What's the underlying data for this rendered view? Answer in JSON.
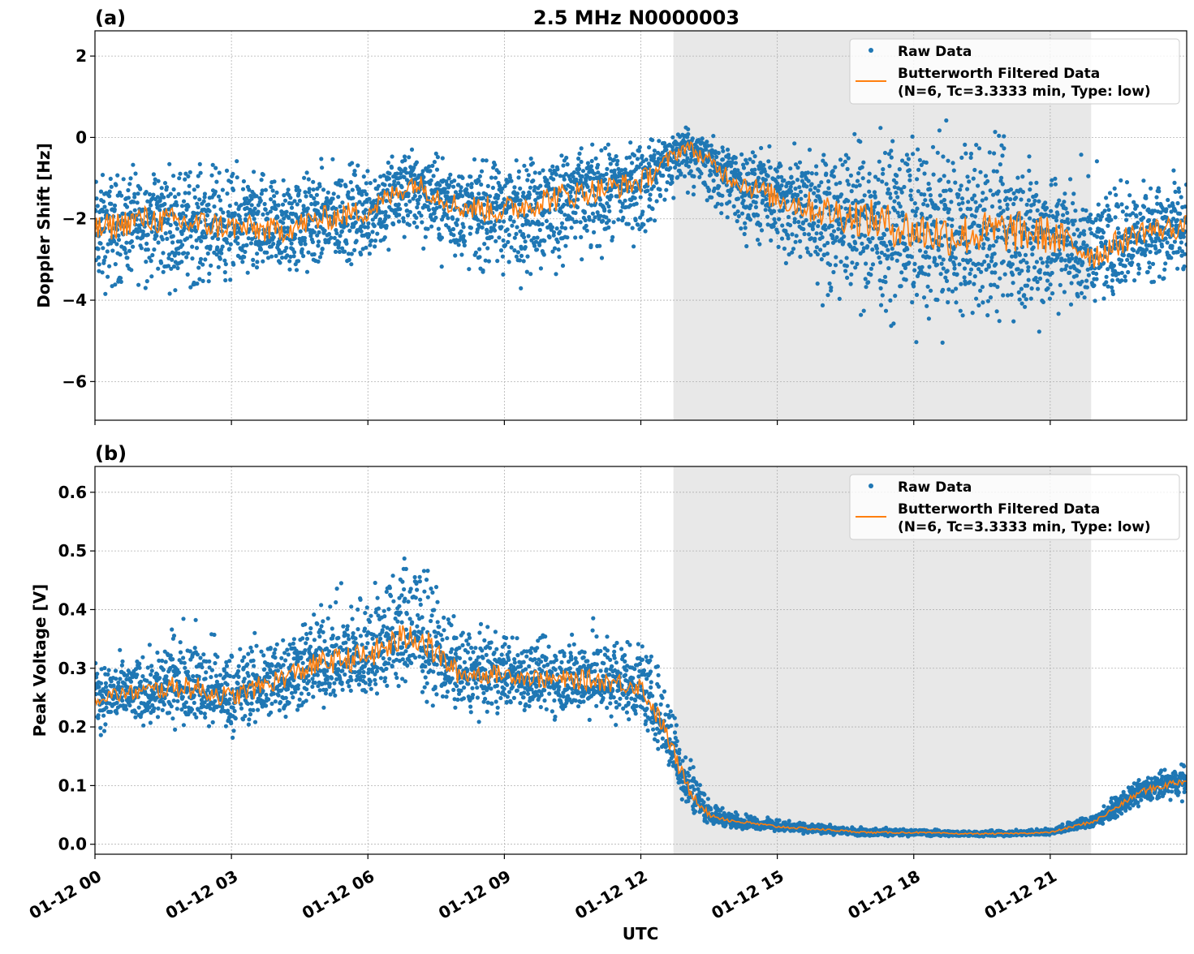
{
  "title": "2.5 MHz N0000003",
  "colors": {
    "raw": "#1f77b4",
    "filtered": "#ff7f0e",
    "shade": "#e8e8e8",
    "grid": "#b0b0b0"
  },
  "chart_data": [
    {
      "type": "scatter",
      "panel_label": "(a)",
      "ylabel": "Doppler Shift [Hz]",
      "xlabel": "",
      "xlim_hours_utc": [
        0,
        24
      ],
      "ylim": [
        -6.95,
        2.62
      ],
      "yticks": [
        2,
        0,
        -2,
        -4,
        -6
      ],
      "ytick_labels": [
        "2",
        "0",
        "−2",
        "−4",
        "−6"
      ],
      "grid": true,
      "legend_placement": "top-right",
      "legend": [
        "Raw Data",
        "Butterworth Filtered Data",
        "(N=6, Tc=3.3333 min, Type: low)"
      ],
      "shaded_span_utc": [
        "12:43",
        "21:54"
      ],
      "series": [
        {
          "name": "Butterworth Filtered Data",
          "kind": "line",
          "x_hours": [
            0,
            1,
            2,
            3,
            4,
            5,
            6,
            7,
            8,
            9,
            10,
            11,
            12,
            13,
            14,
            15,
            16,
            17,
            18,
            19,
            20,
            21,
            22,
            23,
            24
          ],
          "y": [
            -2.3,
            -2.0,
            -2.1,
            -2.2,
            -2.3,
            -2.0,
            -1.8,
            -1.1,
            -1.7,
            -1.8,
            -1.5,
            -1.3,
            -1.1,
            -0.2,
            -1.0,
            -1.5,
            -1.8,
            -2.0,
            -2.3,
            -2.4,
            -2.3,
            -2.4,
            -2.9,
            -2.3,
            -2.2
          ]
        },
        {
          "name": "Raw Data",
          "kind": "scatter-envelope",
          "x_hours": [
            0,
            1,
            2,
            3,
            4,
            5,
            6,
            7,
            8,
            9,
            10,
            11,
            12,
            13,
            14,
            15,
            16,
            17,
            18,
            19,
            20,
            21,
            22,
            23,
            24
          ],
          "y_low": [
            -4.5,
            -4.0,
            -4.2,
            -4.0,
            -4.0,
            -3.8,
            -3.5,
            -3.0,
            -3.7,
            -4.0,
            -4.0,
            -3.5,
            -3.0,
            -1.5,
            -2.8,
            -3.5,
            -4.5,
            -5.0,
            -5.2,
            -5.3,
            -5.5,
            -5.2,
            -4.5,
            -4.0,
            -3.8
          ],
          "y_high": [
            -0.5,
            -0.3,
            -0.2,
            -0.3,
            -0.5,
            -0.3,
            -0.2,
            0.0,
            -0.3,
            -0.2,
            0.0,
            0.0,
            0.2,
            0.5,
            0.0,
            0.0,
            0.2,
            0.5,
            0.8,
            0.8,
            0.6,
            0.0,
            -0.5,
            -0.5,
            -0.5
          ]
        }
      ]
    },
    {
      "type": "scatter",
      "panel_label": "(b)",
      "ylabel": "Peak Voltage [V]",
      "xlabel": "UTC",
      "xlim_hours_utc": [
        0,
        24
      ],
      "ylim": [
        -0.017,
        0.644
      ],
      "yticks": [
        0.0,
        0.1,
        0.2,
        0.3,
        0.4,
        0.5,
        0.6
      ],
      "ytick_labels": [
        "0.0",
        "0.1",
        "0.2",
        "0.3",
        "0.4",
        "0.5",
        "0.6"
      ],
      "xticks_hours": [
        0,
        3,
        6,
        9,
        12,
        15,
        18,
        21
      ],
      "xtick_labels": [
        "01-12 00",
        "01-12 03",
        "01-12 06",
        "01-12 09",
        "01-12 12",
        "01-12 15",
        "01-12 18",
        "01-12 21"
      ],
      "grid": true,
      "legend_placement": "top-right",
      "legend": [
        "Raw Data",
        "Butterworth Filtered Data",
        "(N=6, Tc=3.3333 min, Type: low)"
      ],
      "shaded_span_utc": [
        "12:43",
        "21:54"
      ],
      "series": [
        {
          "name": "Butterworth Filtered Data",
          "kind": "line",
          "x_hours": [
            0,
            1,
            2,
            3,
            4,
            5,
            6,
            7,
            8,
            9,
            10,
            11,
            12,
            12.5,
            13,
            13.5,
            14,
            15,
            16,
            17,
            18,
            19,
            20,
            21,
            22,
            23,
            24
          ],
          "y": [
            0.25,
            0.26,
            0.27,
            0.25,
            0.28,
            0.31,
            0.32,
            0.36,
            0.29,
            0.29,
            0.28,
            0.28,
            0.27,
            0.2,
            0.1,
            0.05,
            0.04,
            0.03,
            0.025,
            0.02,
            0.02,
            0.018,
            0.018,
            0.02,
            0.04,
            0.09,
            0.11
          ]
        },
        {
          "name": "Raw Data",
          "kind": "scatter-envelope",
          "x_hours": [
            0,
            1,
            2,
            3,
            4,
            5,
            6,
            7,
            8,
            9,
            10,
            11,
            12,
            12.5,
            13,
            13.5,
            14,
            15,
            16,
            17,
            18,
            19,
            20,
            21,
            22,
            23,
            24
          ],
          "y_low": [
            0.18,
            0.18,
            0.19,
            0.17,
            0.19,
            0.21,
            0.22,
            0.24,
            0.2,
            0.21,
            0.2,
            0.2,
            0.19,
            0.13,
            0.05,
            0.03,
            0.025,
            0.02,
            0.015,
            0.012,
            0.012,
            0.012,
            0.012,
            0.015,
            0.025,
            0.06,
            0.07
          ],
          "y_high": [
            0.33,
            0.34,
            0.42,
            0.36,
            0.4,
            0.44,
            0.48,
            0.56,
            0.4,
            0.38,
            0.38,
            0.4,
            0.38,
            0.32,
            0.2,
            0.08,
            0.06,
            0.045,
            0.035,
            0.03,
            0.028,
            0.025,
            0.025,
            0.03,
            0.06,
            0.12,
            0.15
          ]
        }
      ]
    }
  ]
}
